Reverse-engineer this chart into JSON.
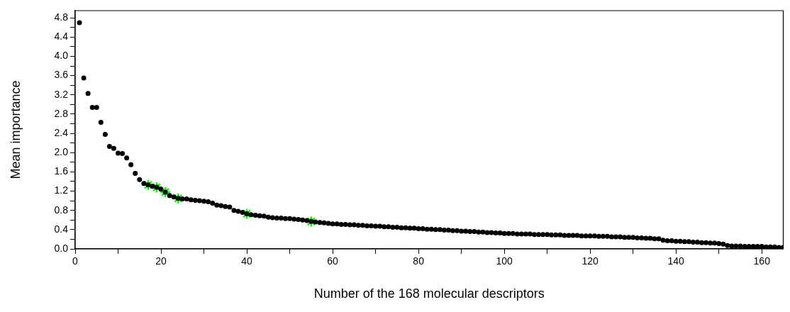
{
  "chart_data": {
    "type": "scatter",
    "xlabel": "Number of the 168 molecular descriptors",
    "ylabel": "Mean importance",
    "xlim": [
      0,
      165
    ],
    "ylim": [
      0,
      4.95
    ],
    "xticks": [
      0,
      {
        "value": 10,
        "label": null
      },
      20,
      {
        "value": 30,
        "label": null
      },
      40,
      {
        "value": 50,
        "label": null
      },
      60,
      {
        "value": 70,
        "label": null
      },
      80,
      {
        "value": 90,
        "label": null
      },
      100,
      {
        "value": 110,
        "label": null
      },
      120,
      {
        "value": 130,
        "label": null
      },
      140,
      {
        "value": 150,
        "label": null
      },
      160
    ],
    "yticks": [
      {
        "value": 0,
        "label": "0.0"
      },
      {
        "value": 0.2,
        "label": null
      },
      {
        "value": 0.4,
        "label": "0.4"
      },
      {
        "value": 0.6,
        "label": null
      },
      {
        "value": 0.8,
        "label": "0.8"
      },
      {
        "value": 1.0,
        "label": null
      },
      {
        "value": 1.2,
        "label": "1.2"
      },
      {
        "value": 1.4,
        "label": null
      },
      {
        "value": 1.6,
        "label": "1.6"
      },
      {
        "value": 1.8,
        "label": null
      },
      {
        "value": 2.0,
        "label": "2.0"
      },
      {
        "value": 2.2,
        "label": null
      },
      {
        "value": 2.4,
        "label": "2.4"
      },
      {
        "value": 2.6,
        "label": null
      },
      {
        "value": 2.8,
        "label": "2.8"
      },
      {
        "value": 3.0,
        "label": null
      },
      {
        "value": 3.2,
        "label": "3.2"
      },
      {
        "value": 3.4,
        "label": null
      },
      {
        "value": 3.6,
        "label": "3.6"
      },
      {
        "value": 3.8,
        "label": null
      },
      {
        "value": 4.0,
        "label": "4.0"
      },
      {
        "value": 4.2,
        "label": null
      },
      {
        "value": 4.4,
        "label": "4.4"
      },
      {
        "value": 4.6,
        "label": null
      },
      {
        "value": 4.8,
        "label": "4.8"
      }
    ],
    "grid": false,
    "legend": false,
    "series": [
      {
        "color": "#000000",
        "marker": "circle",
        "x": [
          1,
          2,
          3,
          4,
          5,
          6,
          7,
          8,
          9,
          10,
          11,
          12,
          13,
          14,
          15,
          16,
          17,
          18,
          19,
          20,
          21,
          22,
          23,
          24,
          25,
          26,
          27,
          28,
          29,
          30,
          31,
          32,
          33,
          34,
          35,
          36,
          37,
          38,
          39,
          40,
          41,
          42,
          43,
          44,
          45,
          46,
          47,
          48,
          49,
          50,
          51,
          52,
          53,
          54,
          55,
          56,
          57,
          58,
          59,
          60,
          61,
          62,
          63,
          64,
          65,
          66,
          67,
          68,
          69,
          70,
          71,
          72,
          73,
          74,
          75,
          76,
          77,
          78,
          79,
          80,
          81,
          82,
          83,
          84,
          85,
          86,
          87,
          88,
          89,
          90,
          91,
          92,
          93,
          94,
          95,
          96,
          97,
          98,
          99,
          100,
          101,
          102,
          103,
          104,
          105,
          106,
          107,
          108,
          109,
          110,
          111,
          112,
          113,
          114,
          115,
          116,
          117,
          118,
          119,
          120,
          121,
          122,
          123,
          124,
          125,
          126,
          127,
          128,
          129,
          130,
          131,
          132,
          133,
          134,
          135,
          136,
          137,
          138,
          139,
          140,
          141,
          142,
          143,
          144,
          145,
          146,
          147,
          148,
          149,
          150,
          151,
          152,
          153,
          154,
          155,
          156,
          157,
          158,
          159,
          160,
          161,
          162,
          163,
          164,
          165
        ],
        "values": [
          4.7,
          3.55,
          3.23,
          2.94,
          2.94,
          2.63,
          2.38,
          2.13,
          2.09,
          1.99,
          1.98,
          1.89,
          1.75,
          1.57,
          1.44,
          1.36,
          1.33,
          1.3,
          1.28,
          1.24,
          1.18,
          1.11,
          1.08,
          1.05,
          1.04,
          1.04,
          1.02,
          1.01,
          1.0,
          0.99,
          0.98,
          0.95,
          0.91,
          0.9,
          0.88,
          0.87,
          0.8,
          0.78,
          0.76,
          0.73,
          0.71,
          0.7,
          0.69,
          0.68,
          0.66,
          0.65,
          0.64,
          0.64,
          0.63,
          0.63,
          0.62,
          0.61,
          0.6,
          0.59,
          0.57,
          0.56,
          0.55,
          0.54,
          0.53,
          0.52,
          0.52,
          0.51,
          0.51,
          0.5,
          0.5,
          0.49,
          0.49,
          0.48,
          0.48,
          0.47,
          0.47,
          0.46,
          0.46,
          0.45,
          0.45,
          0.44,
          0.44,
          0.43,
          0.43,
          0.42,
          0.42,
          0.41,
          0.41,
          0.4,
          0.4,
          0.39,
          0.39,
          0.38,
          0.38,
          0.37,
          0.37,
          0.36,
          0.36,
          0.35,
          0.35,
          0.34,
          0.34,
          0.33,
          0.33,
          0.32,
          0.32,
          0.32,
          0.31,
          0.31,
          0.31,
          0.31,
          0.3,
          0.3,
          0.3,
          0.3,
          0.29,
          0.29,
          0.29,
          0.28,
          0.28,
          0.28,
          0.28,
          0.27,
          0.27,
          0.27,
          0.27,
          0.26,
          0.26,
          0.26,
          0.25,
          0.25,
          0.25,
          0.24,
          0.24,
          0.24,
          0.23,
          0.23,
          0.22,
          0.22,
          0.21,
          0.21,
          0.18,
          0.17,
          0.17,
          0.16,
          0.16,
          0.15,
          0.15,
          0.14,
          0.14,
          0.13,
          0.13,
          0.12,
          0.12,
          0.11,
          0.1,
          0.07,
          0.06,
          0.06,
          0.06,
          0.05,
          0.05,
          0.05,
          0.05,
          0.05,
          0.04,
          0.04,
          0.04,
          0.03,
          0.03
        ]
      },
      {
        "color": "#00ff00",
        "marker": "cross",
        "x": [
          17,
          19,
          21,
          24,
          40,
          55
        ],
        "values": [
          1.33,
          1.28,
          1.18,
          1.05,
          0.73,
          0.57
        ]
      }
    ]
  }
}
